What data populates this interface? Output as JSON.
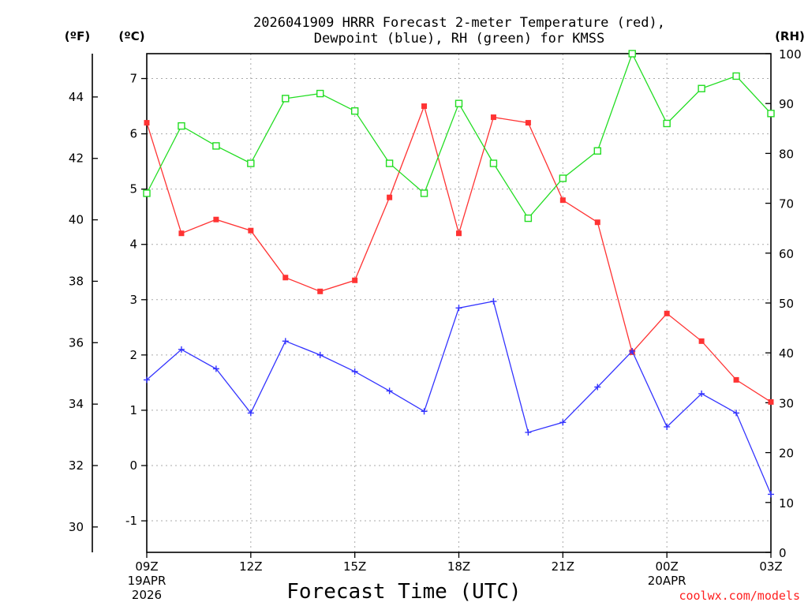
{
  "chart_data": {
    "type": "line",
    "title_line1": "2026041909 HRRR Forecast 2-meter Temperature (red),",
    "title_line2": "Dewpoint (blue), RH (green) for KMSS",
    "xlabel": "Forecast Time (UTC)",
    "credit": "coolwx.com/models",
    "units": {
      "fahrenheit": "(ºF)",
      "celsius": "(ºC)",
      "rh": "(RH)"
    },
    "x_hours": [
      0,
      1,
      2,
      3,
      4,
      5,
      6,
      7,
      8,
      9,
      10,
      11,
      12,
      13,
      14,
      15,
      16,
      17,
      18
    ],
    "xlim": [
      0,
      18
    ],
    "x_ticks": [
      {
        "hour": 0,
        "label": "09Z",
        "sub1": "19APR",
        "sub2": "2026"
      },
      {
        "hour": 3,
        "label": "12Z",
        "sub1": "",
        "sub2": ""
      },
      {
        "hour": 6,
        "label": "15Z",
        "sub1": "",
        "sub2": ""
      },
      {
        "hour": 9,
        "label": "18Z",
        "sub1": "",
        "sub2": ""
      },
      {
        "hour": 12,
        "label": "21Z",
        "sub1": "",
        "sub2": ""
      },
      {
        "hour": 15,
        "label": "00Z",
        "sub1": "20APR",
        "sub2": ""
      },
      {
        "hour": 18,
        "label": "03Z",
        "sub1": "",
        "sub2": ""
      }
    ],
    "ylim_c": [
      -1.57,
      7.45
    ],
    "y_ticks_c": [
      "-1",
      "0",
      "1",
      "2",
      "3",
      "4",
      "5",
      "6",
      "7"
    ],
    "y_ticks_f": [
      "30",
      "32",
      "34",
      "36",
      "38",
      "40",
      "42",
      "44"
    ],
    "ylim_rh": [
      0,
      100
    ],
    "y_ticks_rh": [
      "0",
      "10",
      "20",
      "30",
      "40",
      "50",
      "60",
      "70",
      "80",
      "90",
      "100"
    ],
    "series": [
      {
        "name": "Temperature",
        "axis": "celsius",
        "color": "#ff3333",
        "marker": "square-filled",
        "values": [
          6.2,
          4.2,
          4.45,
          4.25,
          3.4,
          3.15,
          3.35,
          4.85,
          6.5,
          4.2,
          6.3,
          6.2,
          4.8,
          4.4,
          2.05,
          2.75,
          2.25,
          1.55,
          1.15
        ]
      },
      {
        "name": "Dewpoint",
        "axis": "celsius",
        "color": "#3333ff",
        "marker": "plus",
        "values": [
          1.55,
          2.1,
          1.75,
          0.95,
          2.25,
          2.0,
          1.7,
          1.35,
          0.98,
          2.85,
          2.97,
          0.6,
          0.78,
          1.42,
          2.07,
          0.7,
          1.3,
          0.95,
          -0.52
        ]
      },
      {
        "name": "RH",
        "axis": "rh",
        "color": "#22dd22",
        "marker": "square-open",
        "values": [
          72,
          85.5,
          81.5,
          78,
          91,
          92,
          88.5,
          78,
          72,
          90,
          78,
          67,
          75,
          80.5,
          100,
          86,
          93,
          95.5,
          88
        ]
      }
    ]
  }
}
